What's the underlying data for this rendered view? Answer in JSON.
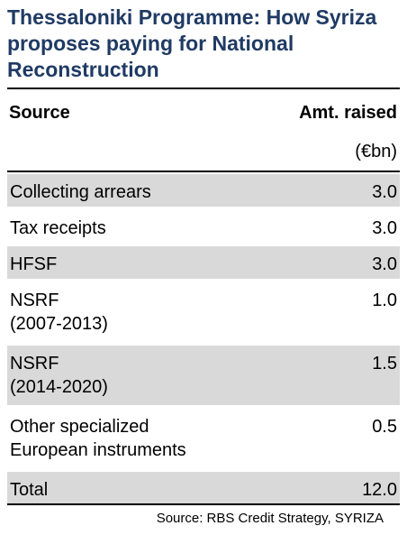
{
  "title": "Thessaloniki Programme: How Syriza proposes paying for National Reconstruction",
  "table": {
    "header_source": "Source",
    "header_amount": "Amt. raised",
    "unit": "(€bn)",
    "rows": [
      {
        "source": "Collecting arrears",
        "amount": "3.0"
      },
      {
        "source": "Tax receipts",
        "amount": "3.0"
      },
      {
        "source": "HFSF",
        "amount": "3.0"
      },
      {
        "source": "NSRF\n(2007-2013)",
        "amount": "1.0"
      },
      {
        "source": "NSRF\n(2014-2020)",
        "amount": "1.5"
      },
      {
        "source": "Other specialized\nEuropean instruments",
        "amount": "0.5"
      },
      {
        "source": "Total",
        "amount": "12.0"
      }
    ]
  },
  "footnote": "Source:  RBS Credit Strategy, SYRIZA",
  "colors": {
    "title": "#1f3a64",
    "row_shade": "#d9d9d9"
  }
}
